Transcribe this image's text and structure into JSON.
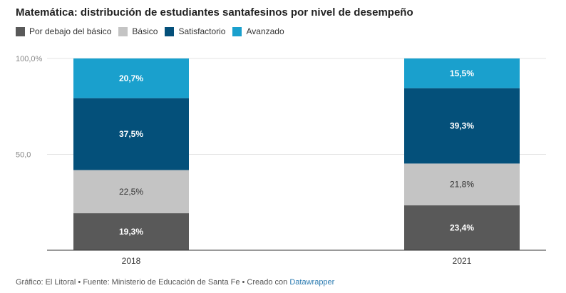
{
  "title": "Matemática: distribución de estudiantes santafesinos por nivel de desempeño",
  "chart_data": {
    "type": "bar",
    "stacked": true,
    "categories": [
      "2018",
      "2021"
    ],
    "series": [
      {
        "name": "Por debajo del básico",
        "color": "#595959",
        "values": [
          19.3,
          23.4
        ],
        "labels": [
          "19,3%",
          "23,4%"
        ],
        "label_color": "#ffffff",
        "label_bold": true
      },
      {
        "name": "Básico",
        "color": "#c4c4c4",
        "values": [
          22.5,
          21.8
        ],
        "labels": [
          "22,5%",
          "21,8%"
        ],
        "label_color": "#333333",
        "label_bold": false
      },
      {
        "name": "Satisfactorio",
        "color": "#04507a",
        "values": [
          37.5,
          39.3
        ],
        "labels": [
          "37,5%",
          "39,3%"
        ],
        "label_color": "#ffffff",
        "label_bold": true
      },
      {
        "name": "Avanzado",
        "color": "#1aa0cd",
        "values": [
          20.7,
          15.5
        ],
        "labels": [
          "20,7%",
          "15,5%"
        ],
        "label_color": "#ffffff",
        "label_bold": true
      }
    ],
    "y_ticks": [
      {
        "value": 100,
        "label": "100,0%"
      },
      {
        "value": 50,
        "label": "50,0"
      }
    ],
    "ylim": [
      0,
      100
    ],
    "grid": true,
    "legend_position": "top-left"
  },
  "footer": {
    "text": "Gráfico: El Litoral • Fuente: Ministerio de Educación de Santa Fe • Creado con ",
    "link": "Datawrapper"
  }
}
